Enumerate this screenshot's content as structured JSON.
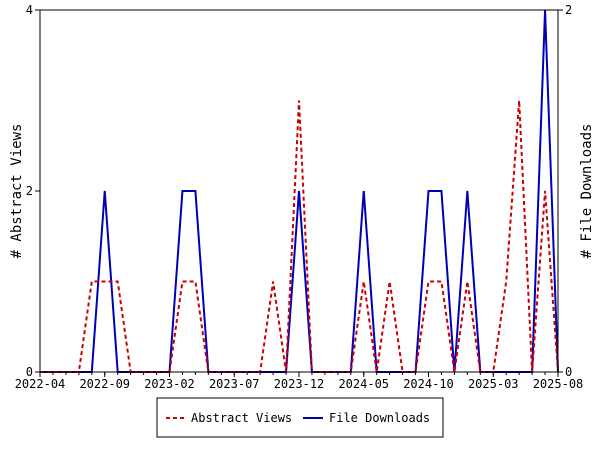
{
  "chart_data": {
    "type": "line",
    "title": "",
    "xlabel": "",
    "ylabel": "# Abstract Views",
    "y2label": "# File Downloads",
    "ylim": [
      0,
      4
    ],
    "y2lim": [
      0,
      2
    ],
    "yticks": [
      "0",
      "2",
      "4"
    ],
    "y2ticks": [
      "0",
      "2"
    ],
    "xtick_labels": [
      "2022-04",
      "2022-09",
      "2023-02",
      "2023-07",
      "2023-12",
      "2024-05",
      "2024-10",
      "2025-03",
      "2025-08"
    ],
    "x_months_count": 41,
    "series": [
      {
        "name": "Abstract Views",
        "axis": "left",
        "color": "#cc0000",
        "dashed": true,
        "values": [
          0,
          0,
          0,
          0,
          1,
          1,
          1,
          0,
          0,
          0,
          0,
          1,
          1,
          0,
          0,
          0,
          0,
          0,
          1,
          0,
          3,
          0,
          0,
          0,
          0,
          1,
          0,
          1,
          0,
          0,
          1,
          1,
          0,
          1,
          0,
          0,
          1,
          3,
          0,
          2,
          0
        ]
      },
      {
        "name": "File Downloads",
        "axis": "right",
        "color": "#0000bb",
        "dashed": false,
        "values": [
          0,
          0,
          0,
          0,
          0,
          1,
          0,
          0,
          0,
          0,
          0,
          1,
          1,
          0,
          0,
          0,
          0,
          0,
          0,
          0,
          1,
          0,
          0,
          0,
          0,
          1,
          0,
          0,
          0,
          0,
          1,
          1,
          0,
          1,
          0,
          0,
          0,
          0,
          0,
          2,
          0
        ]
      }
    ],
    "legend": "bottom"
  }
}
